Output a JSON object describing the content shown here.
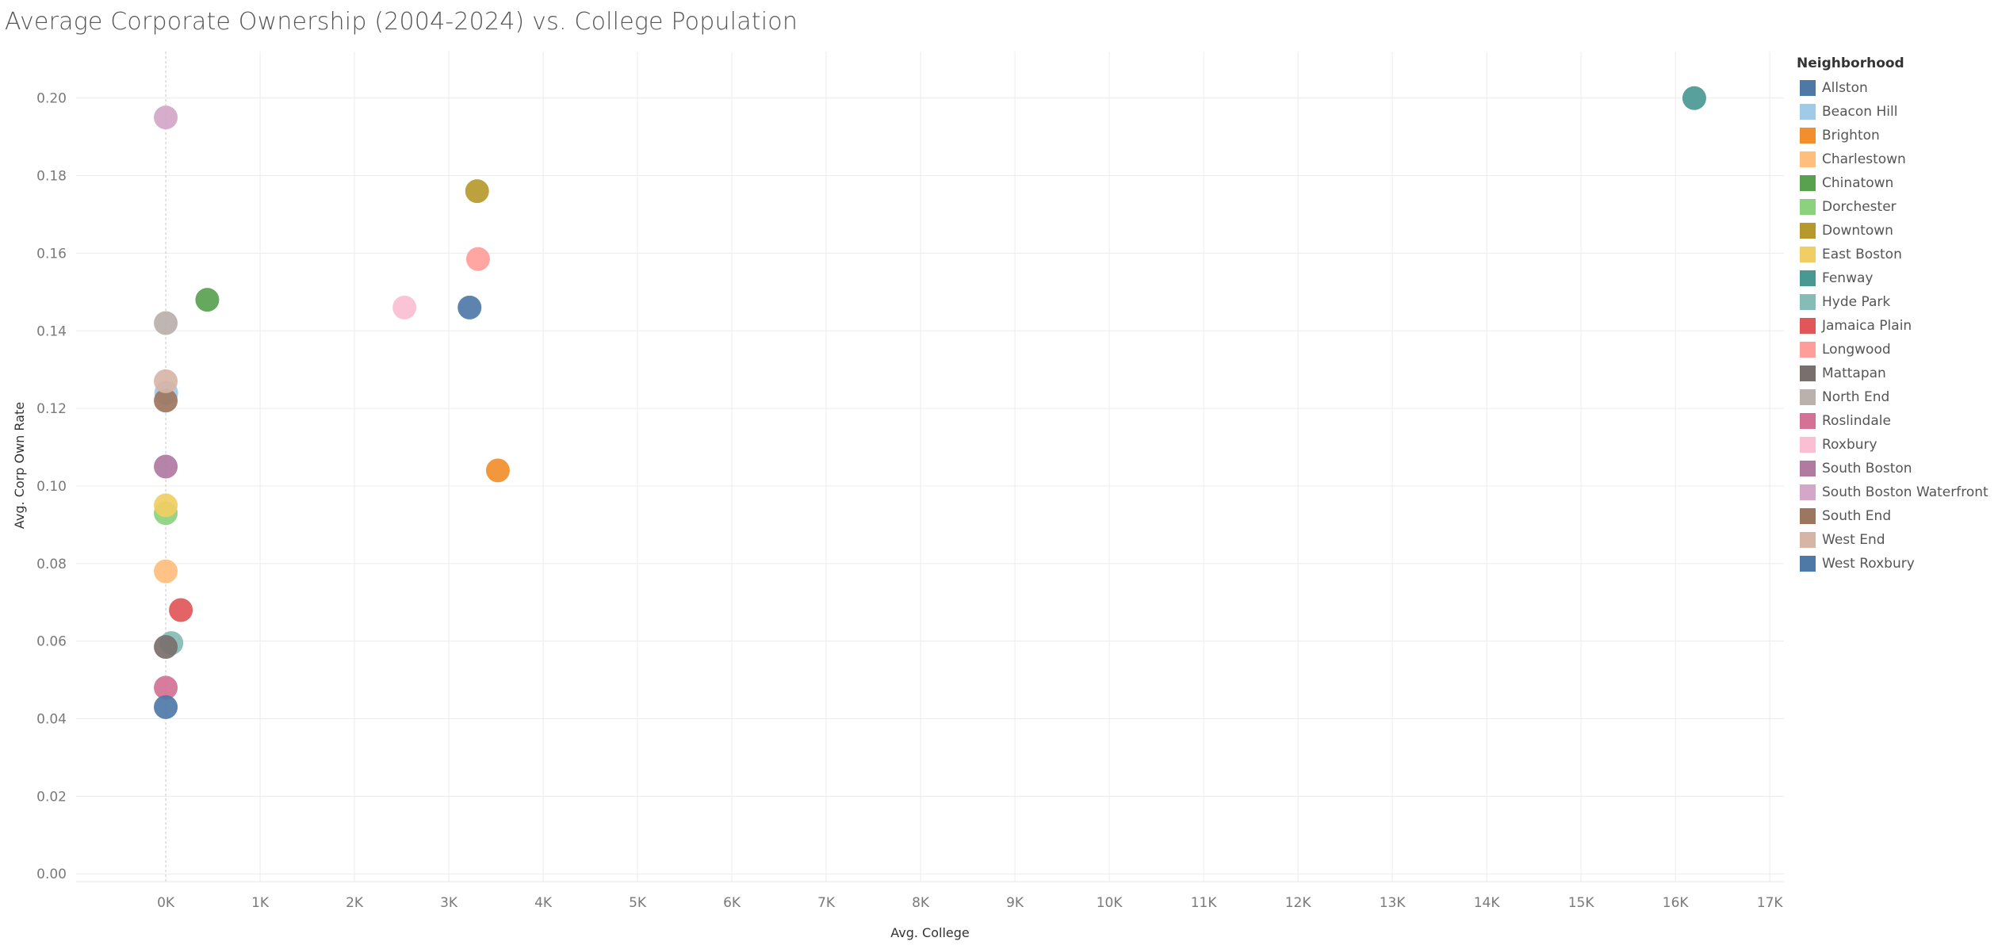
{
  "title": "Average Corporate Ownership (2004-2024) vs. College Population",
  "legend": {
    "title": "Neighborhood",
    "placement": "top-right"
  },
  "chart_data": {
    "type": "scatter",
    "title": "Average Corporate Ownership (2004-2024) vs. College Population",
    "xlabel": "Avg. College",
    "ylabel": "Avg. Corp Own Rate",
    "xlim": [
      -950,
      17150
    ],
    "ylim": [
      -0.002,
      0.212
    ],
    "x_ticks": [
      0,
      1000,
      2000,
      3000,
      4000,
      5000,
      6000,
      7000,
      8000,
      9000,
      10000,
      11000,
      12000,
      13000,
      14000,
      15000,
      16000,
      17000
    ],
    "x_tick_labels": [
      "0K",
      "1K",
      "2K",
      "3K",
      "4K",
      "5K",
      "6K",
      "7K",
      "8K",
      "9K",
      "10K",
      "11K",
      "12K",
      "13K",
      "14K",
      "15K",
      "16K",
      "17K"
    ],
    "y_ticks": [
      0,
      0.02,
      0.04,
      0.06,
      0.08,
      0.1,
      0.12,
      0.14,
      0.16,
      0.18,
      0.2
    ],
    "y_tick_labels": [
      "0.00",
      "0.02",
      "0.04",
      "0.06",
      "0.08",
      "0.10",
      "0.12",
      "0.14",
      "0.16",
      "0.18",
      "0.20"
    ],
    "grid": true,
    "series": [
      {
        "name": "Allston",
        "color": "#4e79a7",
        "x": 3220,
        "y": 0.146
      },
      {
        "name": "Beacon Hill",
        "color": "#a0cbe8",
        "x": 5,
        "y": 0.124
      },
      {
        "name": "Brighton",
        "color": "#f28e2b",
        "x": 3520,
        "y": 0.104
      },
      {
        "name": "Charlestown",
        "color": "#ffbe7d",
        "x": 0,
        "y": 0.078
      },
      {
        "name": "Chinatown",
        "color": "#59a14f",
        "x": 440,
        "y": 0.148
      },
      {
        "name": "Dorchester",
        "color": "#8cd17d",
        "x": 0,
        "y": 0.093
      },
      {
        "name": "Downtown",
        "color": "#b6992d",
        "x": 3300,
        "y": 0.176
      },
      {
        "name": "East Boston",
        "color": "#f1ce63",
        "x": 0,
        "y": 0.095
      },
      {
        "name": "Fenway",
        "color": "#499894",
        "x": 16200,
        "y": 0.2
      },
      {
        "name": "Hyde Park",
        "color": "#86bcb6",
        "x": 60,
        "y": 0.0595
      },
      {
        "name": "Jamaica Plain",
        "color": "#e15759",
        "x": 160,
        "y": 0.068
      },
      {
        "name": "Longwood",
        "color": "#ff9d9a",
        "x": 3310,
        "y": 0.1585
      },
      {
        "name": "Mattapan",
        "color": "#79706e",
        "x": 0,
        "y": 0.0585
      },
      {
        "name": "North End",
        "color": "#bab0ac",
        "x": 0,
        "y": 0.142
      },
      {
        "name": "Roslindale",
        "color": "#d37295",
        "x": 0,
        "y": 0.048
      },
      {
        "name": "Roxbury",
        "color": "#fabfd2",
        "x": 2530,
        "y": 0.146
      },
      {
        "name": "South Boston",
        "color": "#b07aa1",
        "x": 0,
        "y": 0.105
      },
      {
        "name": "South Boston Waterfront",
        "color": "#d4a6c8",
        "x": 0,
        "y": 0.195
      },
      {
        "name": "South End",
        "color": "#9d7660",
        "x": 0,
        "y": 0.122
      },
      {
        "name": "West End",
        "color": "#d7b5a6",
        "x": 0,
        "y": 0.127
      },
      {
        "name": "West Roxbury",
        "color": "#4e79a7",
        "x": 0,
        "y": 0.043
      }
    ]
  }
}
